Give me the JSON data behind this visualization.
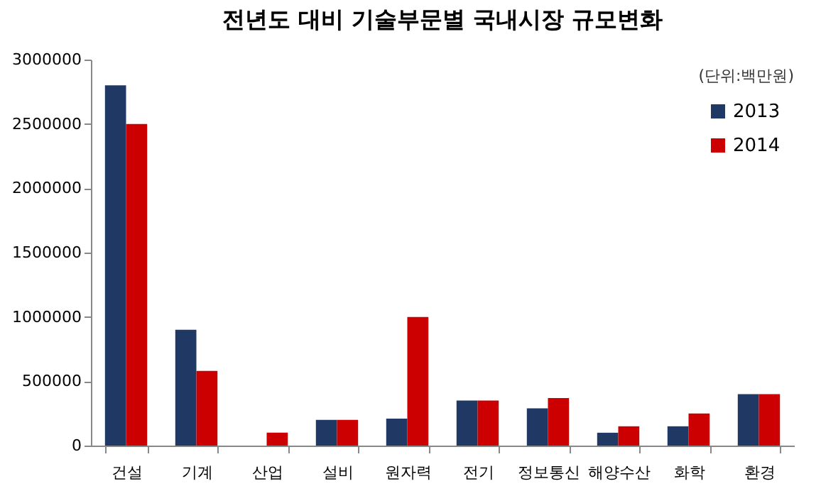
{
  "chart_data": {
    "type": "bar",
    "title": "전년도 대비 기술부문별 국내시장 규모변화",
    "categories": [
      "건설",
      "기계",
      "산업",
      "설비",
      "원자력",
      "전기",
      "정보통신",
      "해양수산",
      "화학",
      "환경"
    ],
    "series": [
      {
        "name": "2013",
        "color": "#1f3864",
        "values": [
          2800000,
          900000,
          null,
          200000,
          210000,
          350000,
          290000,
          100000,
          150000,
          400000
        ]
      },
      {
        "name": "2014",
        "color": "#cc0000",
        "values": [
          2500000,
          580000,
          100000,
          200000,
          1000000,
          350000,
          370000,
          150000,
          250000,
          400000
        ]
      }
    ],
    "ylim": [
      0,
      3000000
    ],
    "yticks": [
      0,
      500000,
      1000000,
      1500000,
      2000000,
      2500000,
      3000000
    ],
    "grid": false,
    "legend": "top right",
    "annotations": [
      "(단위:백만원)"
    ]
  }
}
